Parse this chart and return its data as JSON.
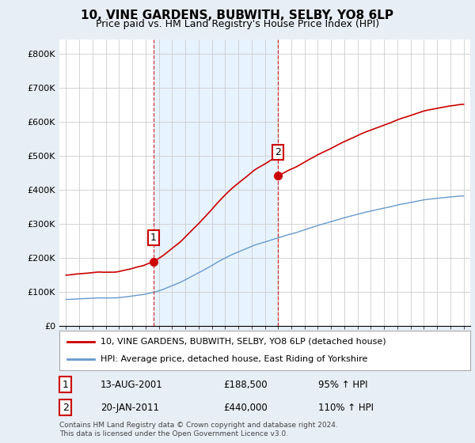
{
  "title": "10, VINE GARDENS, BUBWITH, SELBY, YO8 6LP",
  "subtitle": "Price paid vs. HM Land Registry's House Price Index (HPI)",
  "red_label": "10, VINE GARDENS, BUBWITH, SELBY, YO8 6LP (detached house)",
  "blue_label": "HPI: Average price, detached house, East Riding of Yorkshire",
  "transaction1_date": "13-AUG-2001",
  "transaction1_price": "£188,500",
  "transaction1_hpi": "95% ↑ HPI",
  "transaction2_date": "20-JAN-2011",
  "transaction2_price": "£440,000",
  "transaction2_hpi": "110% ↑ HPI",
  "footer": "Contains HM Land Registry data © Crown copyright and database right 2024.\nThis data is licensed under the Open Government Licence v3.0.",
  "red_color": "#cc0000",
  "blue_color": "#6699cc",
  "shade_color": "#ddeeff",
  "marker1_year": 2001.625,
  "marker2_year": 2011.042,
  "marker1_value": 188500,
  "marker2_value": 440000,
  "ylim": [
    0,
    840000
  ],
  "yticks": [
    0,
    100000,
    200000,
    300000,
    400000,
    500000,
    600000,
    700000,
    800000
  ],
  "ytick_labels": [
    "£0",
    "£100K",
    "£200K",
    "£300K",
    "£400K",
    "£500K",
    "£600K",
    "£700K",
    "£800K"
  ],
  "start_year": 1995,
  "end_year": 2025,
  "bg_color": "#e8eef5",
  "plot_bg": "#ffffff",
  "grid_color": "#cccccc",
  "title_fontsize": 11,
  "subtitle_fontsize": 9,
  "tick_fontsize": 8,
  "legend_fontsize": 8,
  "footer_fontsize": 6.5
}
